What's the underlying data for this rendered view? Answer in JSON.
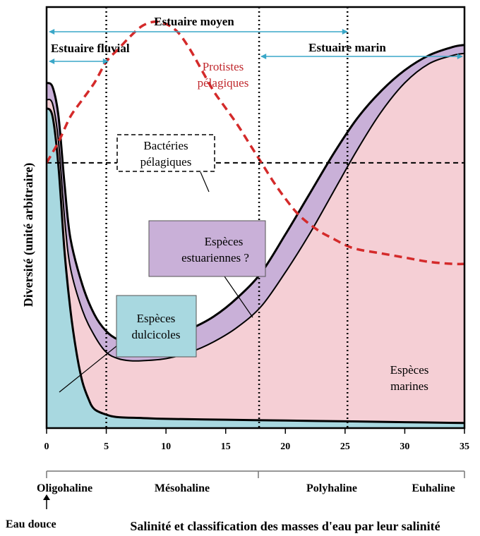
{
  "chart_data": {
    "type": "area",
    "xlabel": "Salinité et classification des masses d'eau par leur salinité",
    "ylabel": "Diversité (unité arbitraire)",
    "xlim": [
      0,
      35
    ],
    "x_ticks": [
      0,
      5,
      10,
      15,
      20,
      25,
      30,
      35
    ],
    "grid": false,
    "vertical_markers": [
      5,
      17.8,
      25.2
    ],
    "zones": [
      {
        "label": "Estuaire moyen",
        "from": 0,
        "to": 25.2
      },
      {
        "label": "Estuaire fluvial",
        "from": 0,
        "to": 5.2
      },
      {
        "label": "Estuaire marin",
        "from": 17.8,
        "to": 35
      }
    ],
    "salinity_classes": [
      {
        "label": "Oligohaline",
        "at": 0
      },
      {
        "label": "Mésohaline",
        "at": 11
      },
      {
        "label": "Polyhaline",
        "at": 25.5
      },
      {
        "label": "Euhaline",
        "at": 32.5
      }
    ],
    "below_axis_note": "Eau douce",
    "series": [
      {
        "name": "Espèces dulcicoles",
        "color": "#a8d8e0",
        "x": [
          0,
          0.5,
          1,
          1.5,
          2,
          2.5,
          3,
          3.5,
          4,
          5,
          6,
          8,
          10,
          15,
          20,
          25,
          30,
          35
        ],
        "y": [
          76,
          74,
          62,
          42,
          28,
          18,
          11,
          7,
          4.5,
          3.2,
          2.6,
          2.4,
          2.2,
          2,
          1.8,
          1.6,
          1.4,
          1.2
        ]
      },
      {
        "name": "Espèces marines",
        "color": "#f5cfd5",
        "x": [
          0,
          0.5,
          1,
          1.5,
          2,
          3,
          4,
          5,
          6,
          7,
          8,
          10,
          12,
          14,
          16,
          18,
          20,
          22,
          24,
          26,
          28,
          30,
          32,
          34,
          35
        ],
        "y": [
          78,
          77,
          68,
          50,
          38,
          28,
          22,
          18,
          16.5,
          16,
          16,
          16.5,
          18,
          20.5,
          24,
          29,
          37,
          46,
          56,
          66,
          75,
          82,
          86.5,
          88.5,
          89
        ]
      },
      {
        "name": "Espèces estuariennes ?",
        "color": "#c9b0d8",
        "x": [
          0,
          0.5,
          1,
          1.5,
          2,
          3,
          4,
          5,
          6,
          7,
          8,
          10,
          12,
          14,
          16,
          18,
          20,
          22,
          24,
          26,
          28,
          30,
          32,
          34,
          35
        ],
        "y": [
          82,
          81,
          74,
          58,
          45,
          34,
          27,
          23,
          21,
          20.5,
          20.5,
          21.5,
          23.5,
          26.5,
          31,
          37,
          46,
          55.5,
          65,
          73.5,
          80,
          85,
          88.5,
          90.5,
          91
        ]
      },
      {
        "name": "Protistes pélagiques",
        "color": "#d42a2a",
        "style": "dashed",
        "x": [
          0,
          1,
          2,
          3,
          4,
          5,
          6,
          7,
          8,
          9,
          10,
          11,
          12,
          13,
          14,
          15,
          16,
          17,
          18,
          19,
          20,
          21,
          22,
          23,
          24,
          25,
          26,
          28,
          30,
          32,
          34,
          35
        ],
        "y": [
          63,
          68,
          74,
          78,
          82,
          87,
          90,
          93,
          95.5,
          96.5,
          96,
          94,
          90,
          85,
          80,
          76,
          72,
          67.5,
          63,
          58.5,
          54.5,
          51,
          48.5,
          46.5,
          45,
          43.5,
          42.5,
          41.5,
          40.5,
          39.5,
          39,
          39
        ]
      },
      {
        "name": "Bactéries pélagiques",
        "color": "#000000",
        "style": "dashed",
        "x": [
          0,
          35
        ],
        "y": [
          63,
          63
        ]
      }
    ],
    "annotations": [
      {
        "text_lines": [
          "Protistes",
          "pélagiques"
        ],
        "color": "#c0282d",
        "style": "plain"
      },
      {
        "text_lines": [
          "Bactéries",
          "pélagiques"
        ],
        "style": "dashed-box"
      },
      {
        "text_lines": [
          "Espèces",
          "estuariennes ?"
        ],
        "style": "purple-box"
      },
      {
        "text_lines": [
          "Espèces",
          "dulcicoles"
        ],
        "style": "blue-box"
      },
      {
        "text_lines": [
          "Espèces",
          "marines"
        ],
        "style": "plain"
      }
    ]
  }
}
